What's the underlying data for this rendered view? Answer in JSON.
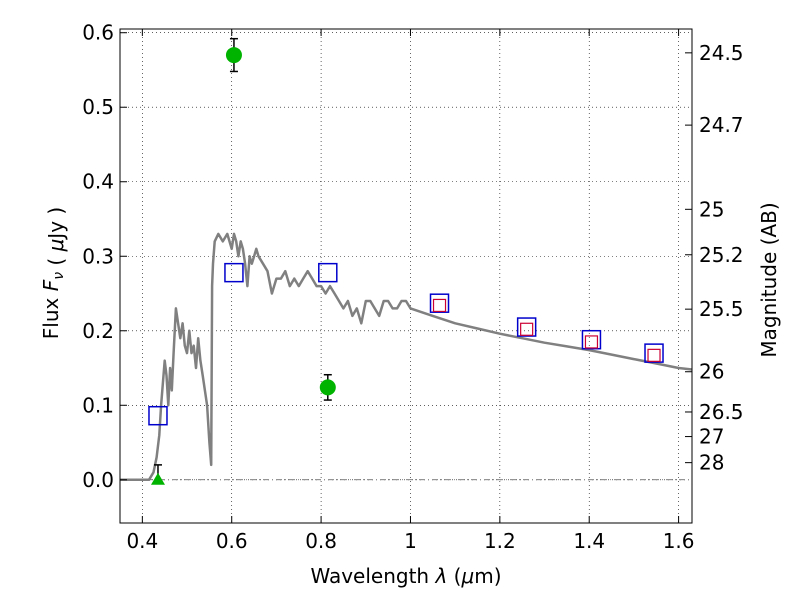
{
  "chart_data": {
    "type": "scatter",
    "xlabel": "Wavelength  λ (μm)",
    "ylabel": "Flux  F_ν  ( μJy )",
    "ylabel_right": "Magnitude (AB)",
    "xlim": [
      0.35,
      1.63
    ],
    "ylim": [
      -0.058,
      0.605
    ],
    "grid": true,
    "x_ticks": [
      {
        "value": 0.4,
        "label": "0.4"
      },
      {
        "value": 0.6,
        "label": "0.6"
      },
      {
        "value": 0.8,
        "label": "0.8"
      },
      {
        "value": 1.0,
        "label": "1"
      },
      {
        "value": 1.2,
        "label": "1.2"
      },
      {
        "value": 1.4,
        "label": "1.4"
      },
      {
        "value": 1.6,
        "label": "1.6"
      }
    ],
    "y_ticks": [
      {
        "value": 0.0,
        "label": "0.0"
      },
      {
        "value": 0.1,
        "label": "0.1"
      },
      {
        "value": 0.2,
        "label": "0.2"
      },
      {
        "value": 0.3,
        "label": "0.3"
      },
      {
        "value": 0.4,
        "label": "0.4"
      },
      {
        "value": 0.5,
        "label": "0.5"
      },
      {
        "value": 0.6,
        "label": "0.6"
      }
    ],
    "right_ticks": [
      {
        "flux": 0.573,
        "label": "24.5"
      },
      {
        "flux": 0.476,
        "label": "24.7"
      },
      {
        "flux": 0.363,
        "label": "25"
      },
      {
        "flux": 0.302,
        "label": "25.2"
      },
      {
        "flux": 0.229,
        "label": "25.5"
      },
      {
        "flux": 0.145,
        "label": "26"
      },
      {
        "flux": 0.091,
        "label": "26.5"
      },
      {
        "flux": 0.058,
        "label": "27"
      },
      {
        "flux": 0.023,
        "label": "28"
      }
    ],
    "series": [
      {
        "type": "line",
        "color": "#808080",
        "x": [
          0.35,
          0.4,
          0.415,
          0.425,
          0.432,
          0.438,
          0.442,
          0.446,
          0.45,
          0.454,
          0.458,
          0.462,
          0.466,
          0.47,
          0.475,
          0.48,
          0.485,
          0.49,
          0.495,
          0.5,
          0.505,
          0.51,
          0.515,
          0.52,
          0.525,
          0.53,
          0.535,
          0.54,
          0.545,
          0.55,
          0.554,
          0.556,
          0.558,
          0.562,
          0.57,
          0.58,
          0.59,
          0.6,
          0.605,
          0.61,
          0.615,
          0.62,
          0.625,
          0.63,
          0.635,
          0.64,
          0.645,
          0.65,
          0.655,
          0.66,
          0.67,
          0.68,
          0.69,
          0.7,
          0.71,
          0.72,
          0.73,
          0.74,
          0.75,
          0.76,
          0.77,
          0.78,
          0.79,
          0.8,
          0.81,
          0.82,
          0.83,
          0.84,
          0.85,
          0.86,
          0.87,
          0.88,
          0.89,
          0.9,
          0.91,
          0.92,
          0.93,
          0.94,
          0.95,
          0.96,
          0.97,
          0.98,
          0.99,
          1.0,
          1.05,
          1.1,
          1.15,
          1.2,
          1.25,
          1.3,
          1.35,
          1.4,
          1.45,
          1.5,
          1.55,
          1.6,
          1.63
        ],
        "y": [
          0.0,
          0.0,
          0.0,
          0.01,
          0.03,
          0.06,
          0.1,
          0.13,
          0.16,
          0.14,
          0.1,
          0.15,
          0.12,
          0.17,
          0.23,
          0.21,
          0.19,
          0.21,
          0.18,
          0.17,
          0.2,
          0.17,
          0.18,
          0.15,
          0.19,
          0.16,
          0.14,
          0.12,
          0.1,
          0.05,
          0.02,
          0.26,
          0.29,
          0.32,
          0.33,
          0.32,
          0.33,
          0.31,
          0.33,
          0.32,
          0.3,
          0.32,
          0.31,
          0.29,
          0.26,
          0.3,
          0.29,
          0.3,
          0.31,
          0.3,
          0.29,
          0.28,
          0.25,
          0.27,
          0.27,
          0.28,
          0.26,
          0.27,
          0.26,
          0.27,
          0.28,
          0.27,
          0.26,
          0.26,
          0.25,
          0.26,
          0.25,
          0.24,
          0.23,
          0.24,
          0.22,
          0.23,
          0.21,
          0.24,
          0.24,
          0.23,
          0.22,
          0.24,
          0.24,
          0.23,
          0.23,
          0.24,
          0.24,
          0.23,
          0.22,
          0.21,
          0.203,
          0.196,
          0.19,
          0.184,
          0.179,
          0.174,
          0.168,
          0.162,
          0.156,
          0.15,
          0.148
        ]
      },
      {
        "type": "scatter",
        "marker": "open-square",
        "color": "#0000cc",
        "x": [
          0.435,
          0.605,
          0.815,
          1.065,
          1.26,
          1.405,
          1.545
        ],
        "y": [
          0.086,
          0.278,
          0.278,
          0.237,
          0.205,
          0.188,
          0.17
        ]
      },
      {
        "type": "scatter",
        "marker": "open-square-small",
        "color": "#cc0033",
        "x": [
          1.065,
          1.26,
          1.405,
          1.545
        ],
        "y": [
          0.234,
          0.202,
          0.185,
          0.167
        ]
      },
      {
        "type": "scatter",
        "marker": "filled-circle",
        "color": "#00b300",
        "x": [
          0.605,
          0.815
        ],
        "y": [
          0.57,
          0.124
        ],
        "yerr": [
          0.022,
          0.017
        ]
      },
      {
        "type": "scatter",
        "marker": "filled-triangle",
        "color": "#00b300",
        "x": [
          0.435
        ],
        "y": [
          0.0
        ],
        "yerr_upper": [
          0.02
        ]
      }
    ]
  }
}
